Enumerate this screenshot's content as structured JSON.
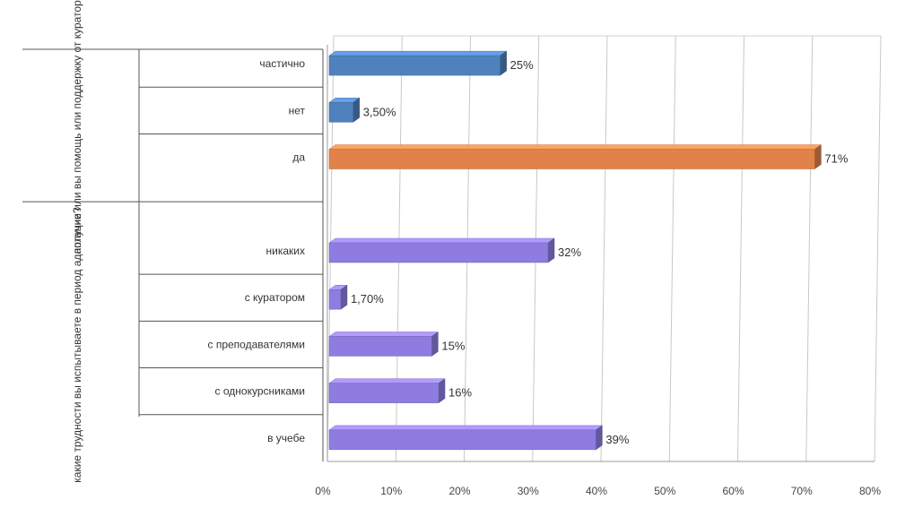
{
  "chart_data": {
    "type": "bar",
    "orientation": "horizontal",
    "style": "3d",
    "groups": [
      {
        "label": "получче или вы помощь или поддержку от куратора?",
        "categories": [
          "частично",
          "нет",
          "да"
        ],
        "values": [
          25,
          3.5,
          71
        ],
        "value_labels": [
          "25%",
          "3,50%",
          "71%"
        ],
        "colors": [
          "#4f81bd",
          "#4f81bd",
          "#e0824a"
        ]
      },
      {
        "label": "какие трудности вы испытываете в период адаптации?",
        "categories": [
          "никаких",
          "с куратором",
          "с преподавателями",
          "с однокурсниками",
          "в учебе"
        ],
        "values": [
          32,
          1.7,
          15,
          16,
          39
        ],
        "value_labels": [
          "32%",
          "1,70%",
          "15%",
          "16%",
          "39%"
        ],
        "colors": [
          "#8e7ce0",
          "#8e7ce0",
          "#8e7ce0",
          "#8e7ce0",
          "#8e7ce0"
        ]
      }
    ],
    "x_ticks": [
      "0%",
      "10%",
      "20%",
      "30%",
      "40%",
      "50%",
      "60%",
      "70%",
      "80%"
    ],
    "xlim": [
      0,
      80
    ],
    "grid": true
  }
}
